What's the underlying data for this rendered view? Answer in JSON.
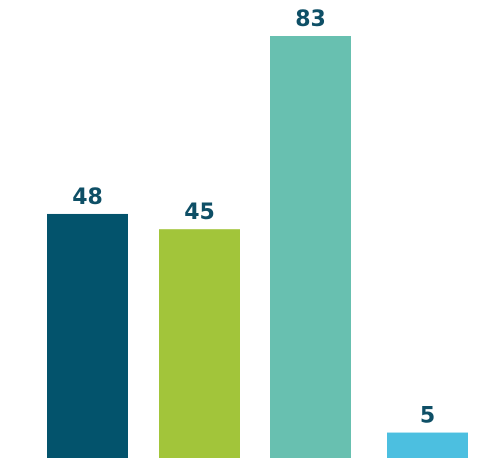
{
  "chart_data": {
    "type": "bar",
    "categories": [
      "",
      "",
      "",
      ""
    ],
    "values": [
      48,
      45,
      83,
      5
    ],
    "colors": [
      "#03536c",
      "#a2c53a",
      "#68c0b0",
      "#4cbfe0"
    ],
    "label_color": "#0e4f66",
    "ylim": [
      0,
      83
    ],
    "grid": false,
    "legend": "none",
    "data_labels": true
  }
}
